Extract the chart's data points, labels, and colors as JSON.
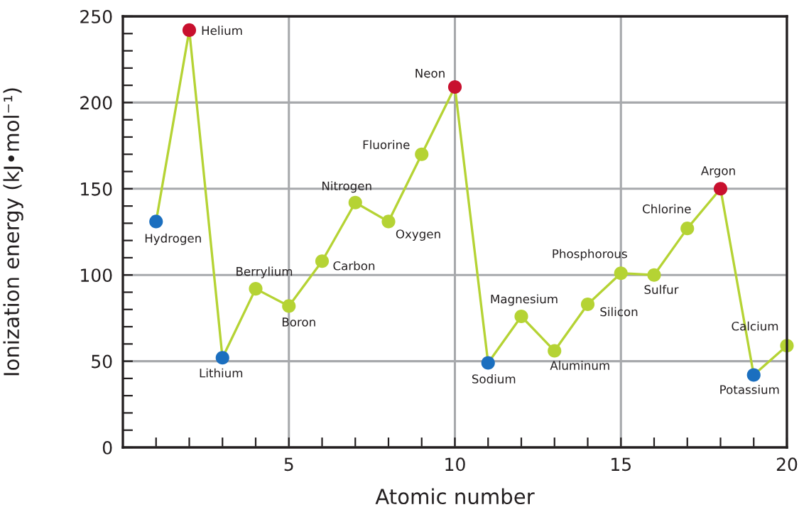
{
  "chart_data": {
    "type": "line",
    "xlabel": "Atomic number",
    "ylabel": "Ionization energy (kJ•mol⁻¹)",
    "x": [
      1,
      2,
      3,
      4,
      5,
      6,
      7,
      8,
      9,
      10,
      11,
      12,
      13,
      14,
      15,
      16,
      17,
      18,
      19,
      20
    ],
    "series": [
      {
        "color": "#b5d334",
        "colors": [
          "#1b6fbf",
          "#c8102e",
          "#1b6fbf",
          "#b5d334",
          "#b5d334",
          "#b5d334",
          "#b5d334",
          "#b5d334",
          "#b5d334",
          "#c8102e",
          "#1b6fbf",
          "#b5d334",
          "#b5d334",
          "#b5d334",
          "#b5d334",
          "#b5d334",
          "#b5d334",
          "#c8102e",
          "#1b6fbf",
          "#b5d334"
        ],
        "values": [
          131,
          242,
          52,
          92,
          82,
          108,
          142,
          131,
          170,
          209,
          49,
          76,
          56,
          83,
          101,
          100,
          127,
          150,
          42,
          59
        ]
      }
    ],
    "xlim": [
      0,
      20
    ],
    "ylim": [
      0,
      250
    ],
    "xticks": [
      {
        "value": 1,
        "label": null
      },
      {
        "value": 2,
        "label": null
      },
      {
        "value": 3,
        "label": null
      },
      {
        "value": 4,
        "label": null
      },
      5,
      {
        "value": 6,
        "label": null
      },
      {
        "value": 7,
        "label": null
      },
      {
        "value": 8,
        "label": null
      },
      {
        "value": 9,
        "label": null
      },
      10,
      {
        "value": 11,
        "label": null
      },
      {
        "value": 12,
        "label": null
      },
      {
        "value": 13,
        "label": null
      },
      {
        "value": 14,
        "label": null
      },
      15,
      {
        "value": 16,
        "label": null
      },
      {
        "value": 17,
        "label": null
      },
      {
        "value": 18,
        "label": null
      },
      {
        "value": 19,
        "label": null
      },
      20
    ],
    "yticks": [
      0,
      {
        "value": 10,
        "label": null
      },
      {
        "value": 20,
        "label": null
      },
      {
        "value": 30,
        "label": null
      },
      {
        "value": 40,
        "label": null
      },
      50,
      {
        "value": 60,
        "label": null
      },
      {
        "value": 70,
        "label": null
      },
      {
        "value": 80,
        "label": null
      },
      {
        "value": 90,
        "label": null
      },
      100,
      {
        "value": 110,
        "label": null
      },
      {
        "value": 120,
        "label": null
      },
      {
        "value": 130,
        "label": null
      },
      {
        "value": 140,
        "label": null
      },
      150,
      {
        "value": 160,
        "label": null
      },
      {
        "value": 170,
        "label": null
      },
      {
        "value": 180,
        "label": null
      },
      {
        "value": 190,
        "label": null
      },
      200,
      {
        "value": 210,
        "label": null
      },
      {
        "value": 220,
        "label": null
      },
      {
        "value": 230,
        "label": null
      },
      {
        "value": 240,
        "label": null
      },
      250
    ],
    "grid": true,
    "marker": "circle",
    "line_style": "solid",
    "annotations": [
      {
        "text": "Hydrogen",
        "x": 1,
        "y": 131
      },
      {
        "text": "Helium",
        "x": 2,
        "y": 242
      },
      {
        "text": "Lithium",
        "x": 3,
        "y": 52
      },
      {
        "text": "Berrylium",
        "x": 4,
        "y": 92
      },
      {
        "text": "Boron",
        "x": 5,
        "y": 82
      },
      {
        "text": "Carbon",
        "x": 6,
        "y": 108
      },
      {
        "text": "Nitrogen",
        "x": 7,
        "y": 142
      },
      {
        "text": "Oxygen",
        "x": 8,
        "y": 131
      },
      {
        "text": "Fluorine",
        "x": 9,
        "y": 170
      },
      {
        "text": "Neon",
        "x": 10,
        "y": 209
      },
      {
        "text": "Sodium",
        "x": 11,
        "y": 49
      },
      {
        "text": "Magnesium",
        "x": 12,
        "y": 76
      },
      {
        "text": "Aluminum",
        "x": 13,
        "y": 56
      },
      {
        "text": "Silicon",
        "x": 14,
        "y": 83
      },
      {
        "text": "Phosphorous",
        "x": 15,
        "y": 101
      },
      {
        "text": "Sulfur",
        "x": 16,
        "y": 100
      },
      {
        "text": "Chlorine",
        "x": 17,
        "y": 127
      },
      {
        "text": "Argon",
        "x": 18,
        "y": 150
      },
      {
        "text": "Potassium",
        "x": 19,
        "y": 42
      },
      {
        "text": "Calcium",
        "x": 20,
        "y": 59
      }
    ]
  }
}
